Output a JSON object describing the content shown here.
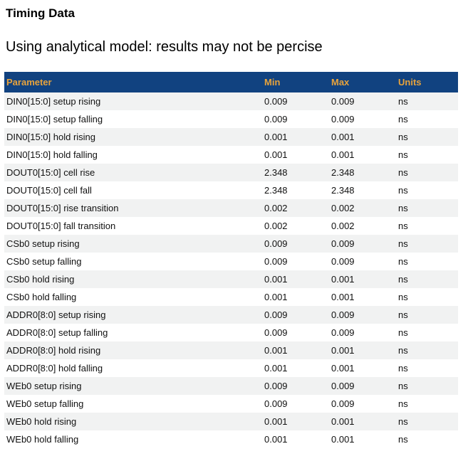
{
  "page": {
    "title": "Timing Data",
    "subtitle": "Using analytical model: results may not be percise"
  },
  "colors": {
    "header_bg": "#114280",
    "header_text": "#e8a33c",
    "row_stripe": "#f1f2f2",
    "row_text": "#111111"
  },
  "table": {
    "columns": [
      "Parameter",
      "Min",
      "Max",
      "Units"
    ],
    "rows": [
      {
        "parameter": "DIN0[15:0] setup rising",
        "min": "0.009",
        "max": "0.009",
        "units": "ns"
      },
      {
        "parameter": "DIN0[15:0] setup falling",
        "min": "0.009",
        "max": "0.009",
        "units": "ns"
      },
      {
        "parameter": "DIN0[15:0] hold rising",
        "min": "0.001",
        "max": "0.001",
        "units": "ns"
      },
      {
        "parameter": "DIN0[15:0] hold falling",
        "min": "0.001",
        "max": "0.001",
        "units": "ns"
      },
      {
        "parameter": "DOUT0[15:0] cell rise",
        "min": "2.348",
        "max": "2.348",
        "units": "ns"
      },
      {
        "parameter": "DOUT0[15:0] cell fall",
        "min": "2.348",
        "max": "2.348",
        "units": "ns"
      },
      {
        "parameter": "DOUT0[15:0] rise transition",
        "min": "0.002",
        "max": "0.002",
        "units": "ns"
      },
      {
        "parameter": "DOUT0[15:0] fall transition",
        "min": "0.002",
        "max": "0.002",
        "units": "ns"
      },
      {
        "parameter": "CSb0 setup rising",
        "min": "0.009",
        "max": "0.009",
        "units": "ns"
      },
      {
        "parameter": "CSb0 setup falling",
        "min": "0.009",
        "max": "0.009",
        "units": "ns"
      },
      {
        "parameter": "CSb0 hold rising",
        "min": "0.001",
        "max": "0.001",
        "units": "ns"
      },
      {
        "parameter": "CSb0 hold falling",
        "min": "0.001",
        "max": "0.001",
        "units": "ns"
      },
      {
        "parameter": "ADDR0[8:0] setup rising",
        "min": "0.009",
        "max": "0.009",
        "units": "ns"
      },
      {
        "parameter": "ADDR0[8:0] setup falling",
        "min": "0.009",
        "max": "0.009",
        "units": "ns"
      },
      {
        "parameter": "ADDR0[8:0] hold rising",
        "min": "0.001",
        "max": "0.001",
        "units": "ns"
      },
      {
        "parameter": "ADDR0[8:0] hold falling",
        "min": "0.001",
        "max": "0.001",
        "units": "ns"
      },
      {
        "parameter": "WEb0 setup rising",
        "min": "0.009",
        "max": "0.009",
        "units": "ns"
      },
      {
        "parameter": "WEb0 setup falling",
        "min": "0.009",
        "max": "0.009",
        "units": "ns"
      },
      {
        "parameter": "WEb0 hold rising",
        "min": "0.001",
        "max": "0.001",
        "units": "ns"
      },
      {
        "parameter": "WEb0 hold falling",
        "min": "0.001",
        "max": "0.001",
        "units": "ns"
      }
    ]
  }
}
